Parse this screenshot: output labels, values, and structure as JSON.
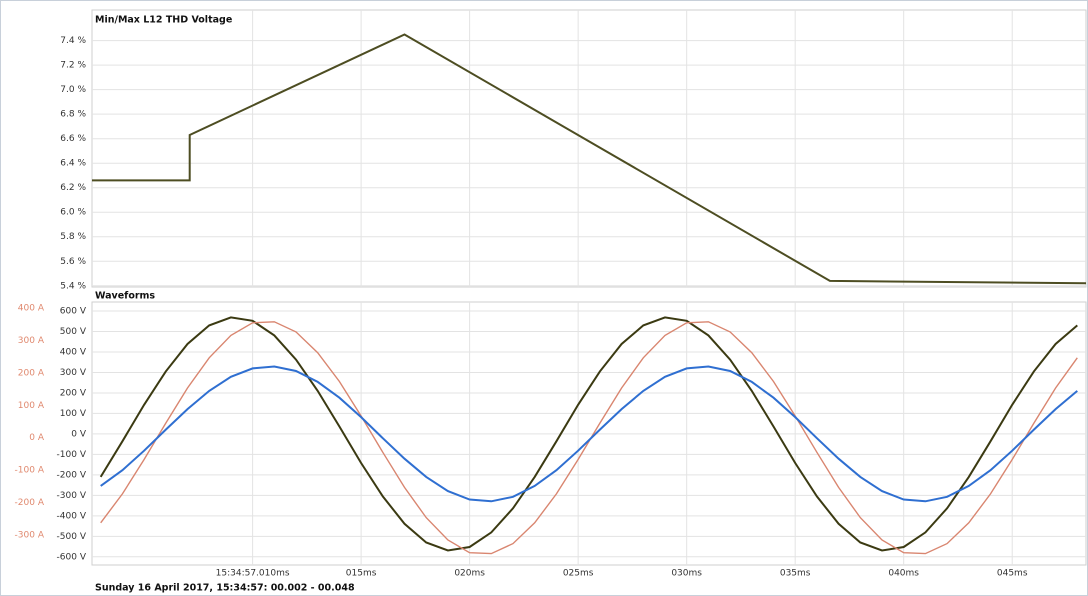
{
  "chart_data": [
    {
      "type": "line",
      "title": "Min/Max L12 THD Voltage",
      "x": [
        2.6,
        7.1,
        7.1,
        17.0,
        36.6,
        48.4
      ],
      "series": [
        {
          "color": "#4d4d22",
          "values": [
            6.26,
            6.26,
            6.63,
            7.45,
            5.44,
            5.42
          ]
        }
      ],
      "xlim": [
        2.6,
        48.4
      ],
      "xticks": [
        10,
        15,
        20,
        25,
        30,
        35,
        40,
        45
      ],
      "ylim": [
        5.39,
        7.65
      ],
      "yticks": [
        {
          "value": 5.4,
          "label": "5.4 %"
        },
        {
          "value": 5.6,
          "label": "5.6 %"
        },
        {
          "value": 5.8,
          "label": "5.8 %"
        },
        {
          "value": 6.0,
          "label": "6.0 %"
        },
        {
          "value": 6.2,
          "label": "6.2 %"
        },
        {
          "value": 6.4,
          "label": "6.4 %"
        },
        {
          "value": 6.6,
          "label": "6.6 %"
        },
        {
          "value": 6.8,
          "label": "6.8 %"
        },
        {
          "value": 7.0,
          "label": "7.0 %"
        },
        {
          "value": 7.2,
          "label": "7.2 %"
        },
        {
          "value": 7.4,
          "label": "7.4 %"
        }
      ],
      "grid": true
    },
    {
      "type": "line",
      "title": "Waveforms",
      "footnote": "Sunday 16 April 2017, 15:34:57: 00.002 - 00.048",
      "x": [
        3,
        4,
        5,
        6,
        7,
        8,
        9,
        10,
        11,
        12,
        13,
        14,
        15,
        16,
        17,
        18,
        19,
        20,
        21,
        22,
        23,
        24,
        25,
        26,
        27,
        28,
        29,
        30,
        31,
        32,
        33,
        34,
        35,
        36,
        37,
        38,
        39,
        40,
        41,
        42,
        43,
        44,
        45,
        46,
        47,
        48
      ],
      "series": [
        {
          "color": "#3b3a12",
          "values": [
            -210,
            -36,
            142,
            305,
            439,
            530,
            569,
            552,
            481,
            363,
            210,
            36,
            -142,
            -305,
            -439,
            -530,
            -569,
            -552,
            -481,
            -363,
            -210,
            -36,
            142,
            305,
            439,
            530,
            569,
            552,
            481,
            363,
            210,
            36,
            -142,
            -305,
            -439,
            -530,
            -569,
            -552,
            -481,
            -363,
            -210,
            -36,
            142,
            305,
            439,
            530
          ]
        },
        {
          "color": "#d98670",
          "axis": "y2",
          "values": [
            -262,
            -173,
            -67,
            45,
            153,
            246,
            315,
            354,
            357,
            326,
            262,
            173,
            67,
            -45,
            -153,
            -246,
            -315,
            -354,
            -357,
            -326,
            -262,
            -173,
            -67,
            45,
            153,
            246,
            315,
            354,
            357,
            326,
            262,
            173,
            67,
            -45,
            -153,
            -246,
            -315,
            -354,
            -357,
            -326,
            -262,
            -173,
            -67,
            45,
            153,
            246
          ]
        },
        {
          "color": "#2f6fd1",
          "values": [
            -254,
            -177,
            -82,
            21,
            121,
            210,
            279,
            320,
            329,
            307,
            254,
            177,
            82,
            -21,
            -121,
            -210,
            -279,
            -320,
            -329,
            -307,
            -254,
            -177,
            -82,
            21,
            121,
            210,
            279,
            320,
            329,
            307,
            254,
            177,
            82,
            -21,
            -121,
            -210,
            -279,
            -320,
            -329,
            -307,
            -254,
            -177,
            -82,
            21,
            121,
            210
          ]
        }
      ],
      "xlim": [
        2.6,
        48.4
      ],
      "xticks": [
        {
          "value": 10,
          "label": "15:34:57.010ms"
        },
        {
          "value": 15,
          "label": "015ms"
        },
        {
          "value": 20,
          "label": "020ms"
        },
        {
          "value": 25,
          "label": "025ms"
        },
        {
          "value": 30,
          "label": "030ms"
        },
        {
          "value": 35,
          "label": "035ms"
        },
        {
          "value": 40,
          "label": "040ms"
        },
        {
          "value": 45,
          "label": "045ms"
        }
      ],
      "ylim": [
        -640,
        644
      ],
      "yticks": [
        {
          "value": 600,
          "label": "600 V"
        },
        {
          "value": 500,
          "label": "500 V"
        },
        {
          "value": 400,
          "label": "400 V"
        },
        {
          "value": 300,
          "label": "300 V"
        },
        {
          "value": 200,
          "label": "200 V"
        },
        {
          "value": 100,
          "label": "100 V"
        },
        {
          "value": 0,
          "label": "0 V"
        },
        {
          "value": -100,
          "label": "-100 V"
        },
        {
          "value": -200,
          "label": "-200 V"
        },
        {
          "value": -300,
          "label": "-300 V"
        },
        {
          "value": -400,
          "label": "-400 V"
        },
        {
          "value": -500,
          "label": "-500 V"
        },
        {
          "value": -600,
          "label": "-600 V"
        }
      ],
      "y2lim": [
        -392,
        418
      ],
      "y2ticks": [
        {
          "value": 400,
          "label": "400 A"
        },
        {
          "value": 300,
          "label": "300 A"
        },
        {
          "value": 200,
          "label": "200 A"
        },
        {
          "value": 100,
          "label": "100 A"
        },
        {
          "value": 0,
          "label": "0 A"
        },
        {
          "value": -100,
          "label": "-100 A"
        },
        {
          "value": -200,
          "label": "-200 A"
        },
        {
          "value": -300,
          "label": "-300 A"
        }
      ],
      "y2color": "#e0896f",
      "grid": true
    }
  ]
}
